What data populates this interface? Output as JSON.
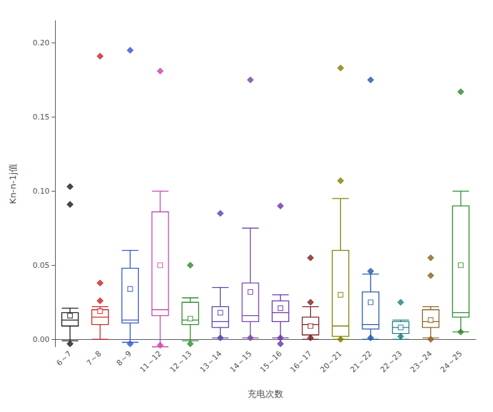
{
  "chart_data": {
    "type": "box",
    "xlabel": "充电次数",
    "ylabel": "Kn-n-1j值",
    "ylim": [
      -0.005,
      0.215
    ],
    "yticks": [
      {
        "value": 0.0,
        "label": "0.00"
      },
      {
        "value": 0.05,
        "label": "0.05"
      },
      {
        "value": 0.1,
        "label": "0.10"
      },
      {
        "value": 0.15,
        "label": "0.15"
      },
      {
        "value": 0.2,
        "label": "0.20"
      }
    ],
    "grid": false,
    "categories": [
      "6～7",
      "7～8",
      "8～9",
      "11～12",
      "12～13",
      "13～14",
      "14～15",
      "15～16",
      "16～17",
      "20～21",
      "21～22",
      "22～23",
      "23～24",
      "24～25"
    ],
    "colors": [
      "#1a1a1a",
      "#cc2222",
      "#3355cc",
      "#cc44aa",
      "#2d8c2d",
      "#5544aa",
      "#7744aa",
      "#6633aa",
      "#7b2020",
      "#808000",
      "#2255aa",
      "#208080",
      "#8a6020",
      "#2a8a2a"
    ],
    "boxes": [
      {
        "q1": 0.009,
        "median": 0.013,
        "q3": 0.018,
        "whislo": -0.001,
        "whishi": 0.021,
        "mean": 0.016,
        "fliers": [
          0.091,
          0.103,
          -0.003
        ]
      },
      {
        "q1": 0.01,
        "median": 0.015,
        "q3": 0.02,
        "whislo": 0.0,
        "whishi": 0.022,
        "mean": 0.019,
        "fliers": [
          0.038,
          0.191,
          0.026
        ]
      },
      {
        "q1": 0.011,
        "median": 0.013,
        "q3": 0.048,
        "whislo": -0.002,
        "whishi": 0.06,
        "mean": 0.034,
        "fliers": [
          0.195,
          -0.003
        ]
      },
      {
        "q1": 0.016,
        "median": 0.02,
        "q3": 0.086,
        "whislo": -0.005,
        "whishi": 0.1,
        "mean": 0.05,
        "fliers": [
          0.181,
          -0.004
        ]
      },
      {
        "q1": 0.01,
        "median": 0.013,
        "q3": 0.025,
        "whislo": -0.001,
        "whishi": 0.028,
        "mean": 0.014,
        "fliers": [
          0.05,
          -0.003
        ]
      },
      {
        "q1": 0.008,
        "median": 0.012,
        "q3": 0.022,
        "whislo": 0.001,
        "whishi": 0.035,
        "mean": 0.018,
        "fliers": [
          0.085,
          0.001
        ]
      },
      {
        "q1": 0.012,
        "median": 0.016,
        "q3": 0.038,
        "whislo": 0.001,
        "whishi": 0.075,
        "mean": 0.032,
        "fliers": [
          0.175,
          0.001
        ]
      },
      {
        "q1": 0.012,
        "median": 0.018,
        "q3": 0.026,
        "whislo": 0.001,
        "whishi": 0.03,
        "mean": 0.021,
        "fliers": [
          0.09,
          0.001,
          -0.003
        ]
      },
      {
        "q1": 0.003,
        "median": 0.01,
        "q3": 0.015,
        "whislo": 0.0,
        "whishi": 0.022,
        "mean": 0.009,
        "fliers": [
          0.055,
          0.025,
          0.001
        ]
      },
      {
        "q1": 0.002,
        "median": 0.009,
        "q3": 0.06,
        "whislo": 0.0,
        "whishi": 0.095,
        "mean": 0.03,
        "fliers": [
          0.183,
          0.107,
          0.0
        ]
      },
      {
        "q1": 0.007,
        "median": 0.01,
        "q3": 0.032,
        "whislo": 0.0,
        "whishi": 0.044,
        "mean": 0.025,
        "fliers": [
          0.175,
          0.046,
          0.001
        ]
      },
      {
        "q1": 0.004,
        "median": 0.008,
        "q3": 0.012,
        "whislo": 0.0,
        "whishi": 0.013,
        "mean": 0.008,
        "fliers": [
          0.025,
          0.002
        ]
      },
      {
        "q1": 0.008,
        "median": 0.012,
        "q3": 0.02,
        "whislo": 0.001,
        "whishi": 0.022,
        "mean": 0.013,
        "fliers": [
          0.055,
          0.043,
          0.0
        ]
      },
      {
        "q1": 0.015,
        "median": 0.018,
        "q3": 0.09,
        "whislo": 0.005,
        "whishi": 0.1,
        "mean": 0.05,
        "fliers": [
          0.167,
          0.005
        ]
      }
    ]
  }
}
